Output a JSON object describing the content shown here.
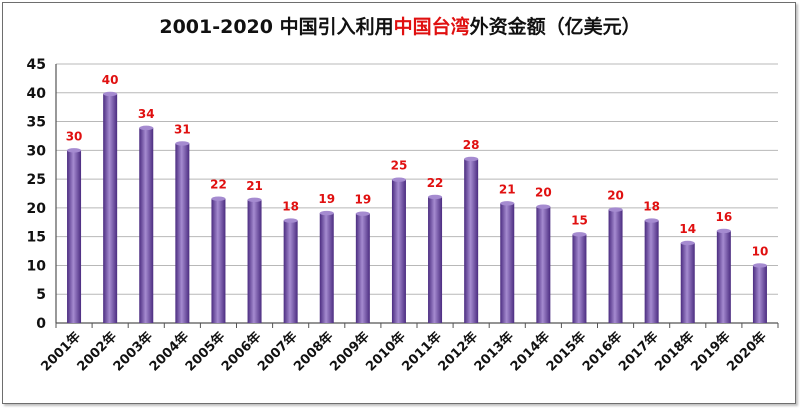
{
  "chart_data": {
    "type": "bar",
    "title_parts": [
      {
        "text": "2001-2020 中国引入利用",
        "highlight": false
      },
      {
        "text": "中国台湾",
        "highlight": true
      },
      {
        "text": "外资金额（亿美元）",
        "highlight": false
      }
    ],
    "categories": [
      "2001年",
      "2002年",
      "2003年",
      "2004年",
      "2005年",
      "2006年",
      "2007年",
      "2008年",
      "2009年",
      "2010年",
      "2011年",
      "2012年",
      "2013年",
      "2014年",
      "2015年",
      "2016年",
      "2017年",
      "2018年",
      "2019年",
      "2020年"
    ],
    "values": [
      30,
      40,
      34,
      31,
      22,
      21,
      18,
      19,
      19,
      25,
      22,
      28,
      21,
      20,
      15,
      20,
      18,
      14,
      16,
      10
    ],
    "value_labels": [
      "30",
      "40",
      "34",
      "31",
      "22",
      "21",
      "18",
      "19",
      "19",
      "25",
      "22",
      "28",
      "21",
      "20",
      "15",
      "20",
      "18",
      "14",
      "16",
      "10"
    ],
    "plot_values": [
      30.0,
      39.8,
      33.9,
      31.2,
      21.6,
      21.4,
      17.8,
      19.1,
      19.0,
      24.9,
      21.9,
      28.5,
      20.8,
      20.2,
      15.4,
      19.7,
      17.8,
      13.9,
      16.0,
      10.0
    ],
    "xlabel": "",
    "ylabel": "",
    "ylim": [
      0,
      45
    ],
    "yticks": [
      0,
      5,
      10,
      15,
      20,
      25,
      30,
      35,
      40,
      45
    ],
    "grid": true,
    "legend": "none",
    "colors": {
      "bar_light": "#a58bd0",
      "bar_mid": "#7d5bb5",
      "bar_dark": "#4b2c80",
      "label": "#e01010",
      "title_highlight": "#e01010",
      "grid": "#b8b8b8"
    }
  }
}
